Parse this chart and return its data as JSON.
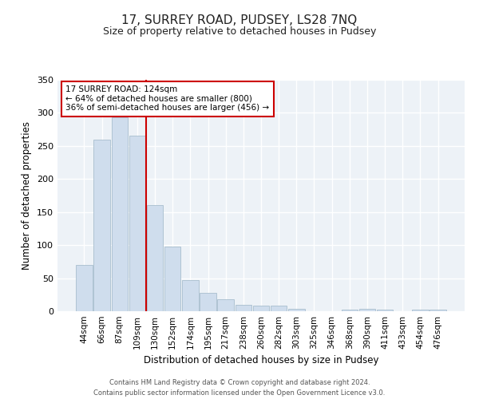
{
  "title": "17, SURREY ROAD, PUDSEY, LS28 7NQ",
  "subtitle": "Size of property relative to detached houses in Pudsey",
  "xlabel": "Distribution of detached houses by size in Pudsey",
  "ylabel": "Number of detached properties",
  "bar_labels": [
    "44sqm",
    "66sqm",
    "87sqm",
    "109sqm",
    "130sqm",
    "152sqm",
    "174sqm",
    "195sqm",
    "217sqm",
    "238sqm",
    "260sqm",
    "282sqm",
    "303sqm",
    "325sqm",
    "346sqm",
    "368sqm",
    "390sqm",
    "411sqm",
    "433sqm",
    "454sqm",
    "476sqm"
  ],
  "bar_values": [
    70,
    260,
    293,
    265,
    160,
    98,
    47,
    28,
    18,
    10,
    9,
    9,
    4,
    0,
    0,
    3,
    4,
    3,
    0,
    3,
    3
  ],
  "bar_color": "#cfdded",
  "bar_edge_color": "#a8bece",
  "vline_x_idx": 4,
  "vline_color": "#cc0000",
  "ylim": [
    0,
    350
  ],
  "yticks": [
    0,
    50,
    100,
    150,
    200,
    250,
    300,
    350
  ],
  "annotation_title": "17 SURREY ROAD: 124sqm",
  "annotation_line1": "← 64% of detached houses are smaller (800)",
  "annotation_line2": "36% of semi-detached houses are larger (456) →",
  "annotation_box_edge": "#cc0000",
  "footer1": "Contains HM Land Registry data © Crown copyright and database right 2024.",
  "footer2": "Contains public sector information licensed under the Open Government Licence v3.0.",
  "bg_color": "#ffffff",
  "plot_bg_color": "#edf2f7",
  "grid_color": "#ffffff",
  "title_fontsize": 11,
  "subtitle_fontsize": 9,
  "label_fontsize": 8.5,
  "tick_fontsize": 7.5
}
